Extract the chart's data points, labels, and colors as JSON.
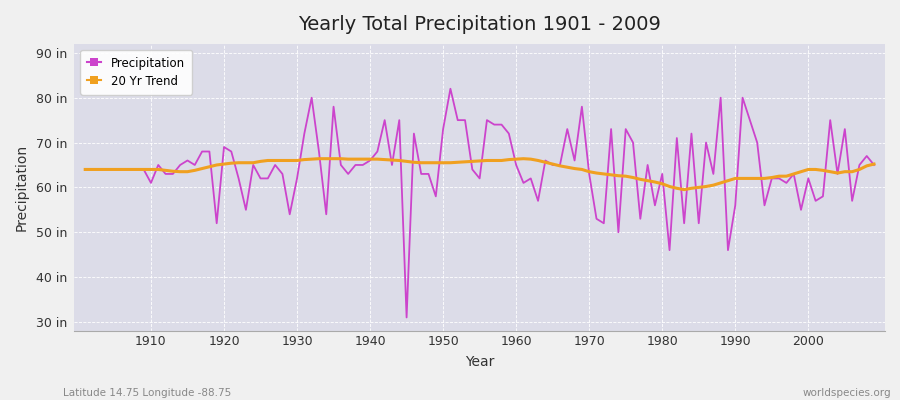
{
  "title": "Yearly Total Precipitation 1901 - 2009",
  "xlabel": "Year",
  "ylabel": "Precipitation",
  "subtitle_left": "Latitude 14.75 Longitude -88.75",
  "subtitle_right": "worldspecies.org",
  "ylim": [
    28,
    92
  ],
  "yticks": [
    30,
    40,
    50,
    60,
    70,
    80,
    90
  ],
  "ytick_labels": [
    "30 in",
    "40 in",
    "50 in",
    "60 in",
    "70 in",
    "80 in",
    "90 in"
  ],
  "xticks": [
    1910,
    1920,
    1930,
    1940,
    1950,
    1960,
    1970,
    1980,
    1990,
    2000
  ],
  "fig_bg_color": "#f0f0f0",
  "plot_bg_color": "#dcdce8",
  "precip_color": "#cc44cc",
  "trend_color": "#f0a020",
  "years": [
    1901,
    1902,
    1903,
    1904,
    1905,
    1906,
    1907,
    1908,
    1909,
    1910,
    1911,
    1912,
    1913,
    1914,
    1915,
    1916,
    1917,
    1918,
    1919,
    1920,
    1921,
    1922,
    1923,
    1924,
    1925,
    1926,
    1927,
    1928,
    1929,
    1930,
    1931,
    1932,
    1933,
    1934,
    1935,
    1936,
    1937,
    1938,
    1939,
    1940,
    1941,
    1942,
    1943,
    1944,
    1945,
    1946,
    1947,
    1948,
    1949,
    1950,
    1951,
    1952,
    1953,
    1954,
    1955,
    1956,
    1957,
    1958,
    1959,
    1960,
    1961,
    1962,
    1963,
    1964,
    1965,
    1966,
    1967,
    1968,
    1969,
    1970,
    1971,
    1972,
    1973,
    1974,
    1975,
    1976,
    1977,
    1978,
    1979,
    1980,
    1981,
    1982,
    1983,
    1984,
    1985,
    1986,
    1987,
    1988,
    1989,
    1990,
    1991,
    1992,
    1993,
    1994,
    1995,
    1996,
    1997,
    1998,
    1999,
    2000,
    2001,
    2002,
    2003,
    2004,
    2005,
    2006,
    2007,
    2008,
    2009
  ],
  "precip": [
    64,
    64,
    64,
    64,
    64,
    64,
    64,
    64,
    64,
    61,
    65,
    63,
    63,
    65,
    66,
    65,
    68,
    68,
    52,
    69,
    68,
    62,
    55,
    65,
    62,
    62,
    65,
    63,
    54,
    62,
    72,
    80,
    68,
    54,
    78,
    65,
    63,
    65,
    65,
    66,
    68,
    75,
    65,
    75,
    31,
    72,
    63,
    63,
    58,
    73,
    82,
    75,
    75,
    64,
    62,
    75,
    74,
    74,
    72,
    65,
    61,
    62,
    57,
    66,
    65,
    65,
    73,
    66,
    78,
    63,
    53,
    52,
    73,
    50,
    73,
    70,
    53,
    65,
    56,
    63,
    46,
    71,
    52,
    72,
    52,
    70,
    63,
    80,
    46,
    56,
    80,
    75,
    70,
    56,
    62,
    62,
    61,
    63,
    55,
    62,
    57,
    58,
    75,
    63,
    73,
    57,
    65,
    67,
    65
  ],
  "trend": [
    64.0,
    64.0,
    64.0,
    64.0,
    64.0,
    64.0,
    64.0,
    64.0,
    64.0,
    64.0,
    64.0,
    63.8,
    63.6,
    63.5,
    63.5,
    63.8,
    64.2,
    64.6,
    65.0,
    65.2,
    65.4,
    65.5,
    65.5,
    65.5,
    65.8,
    66.0,
    66.0,
    66.0,
    66.0,
    66.0,
    66.2,
    66.3,
    66.4,
    66.4,
    66.4,
    66.4,
    66.3,
    66.3,
    66.3,
    66.3,
    66.3,
    66.2,
    66.1,
    66.0,
    65.8,
    65.6,
    65.5,
    65.5,
    65.5,
    65.5,
    65.5,
    65.6,
    65.7,
    65.8,
    65.9,
    66.0,
    66.0,
    66.0,
    66.2,
    66.3,
    66.4,
    66.3,
    66.0,
    65.6,
    65.2,
    64.8,
    64.5,
    64.2,
    64.0,
    63.5,
    63.2,
    63.0,
    62.8,
    62.6,
    62.5,
    62.2,
    61.8,
    61.5,
    61.2,
    60.8,
    60.2,
    59.8,
    59.5,
    59.8,
    60.0,
    60.2,
    60.5,
    61.0,
    61.5,
    62.0,
    62.0,
    62.0,
    62.0,
    62.0,
    62.2,
    62.5,
    62.5,
    63.0,
    63.5,
    64.0,
    64.0,
    63.8,
    63.5,
    63.2,
    63.5,
    63.5,
    64.0,
    64.8,
    65.2
  ]
}
